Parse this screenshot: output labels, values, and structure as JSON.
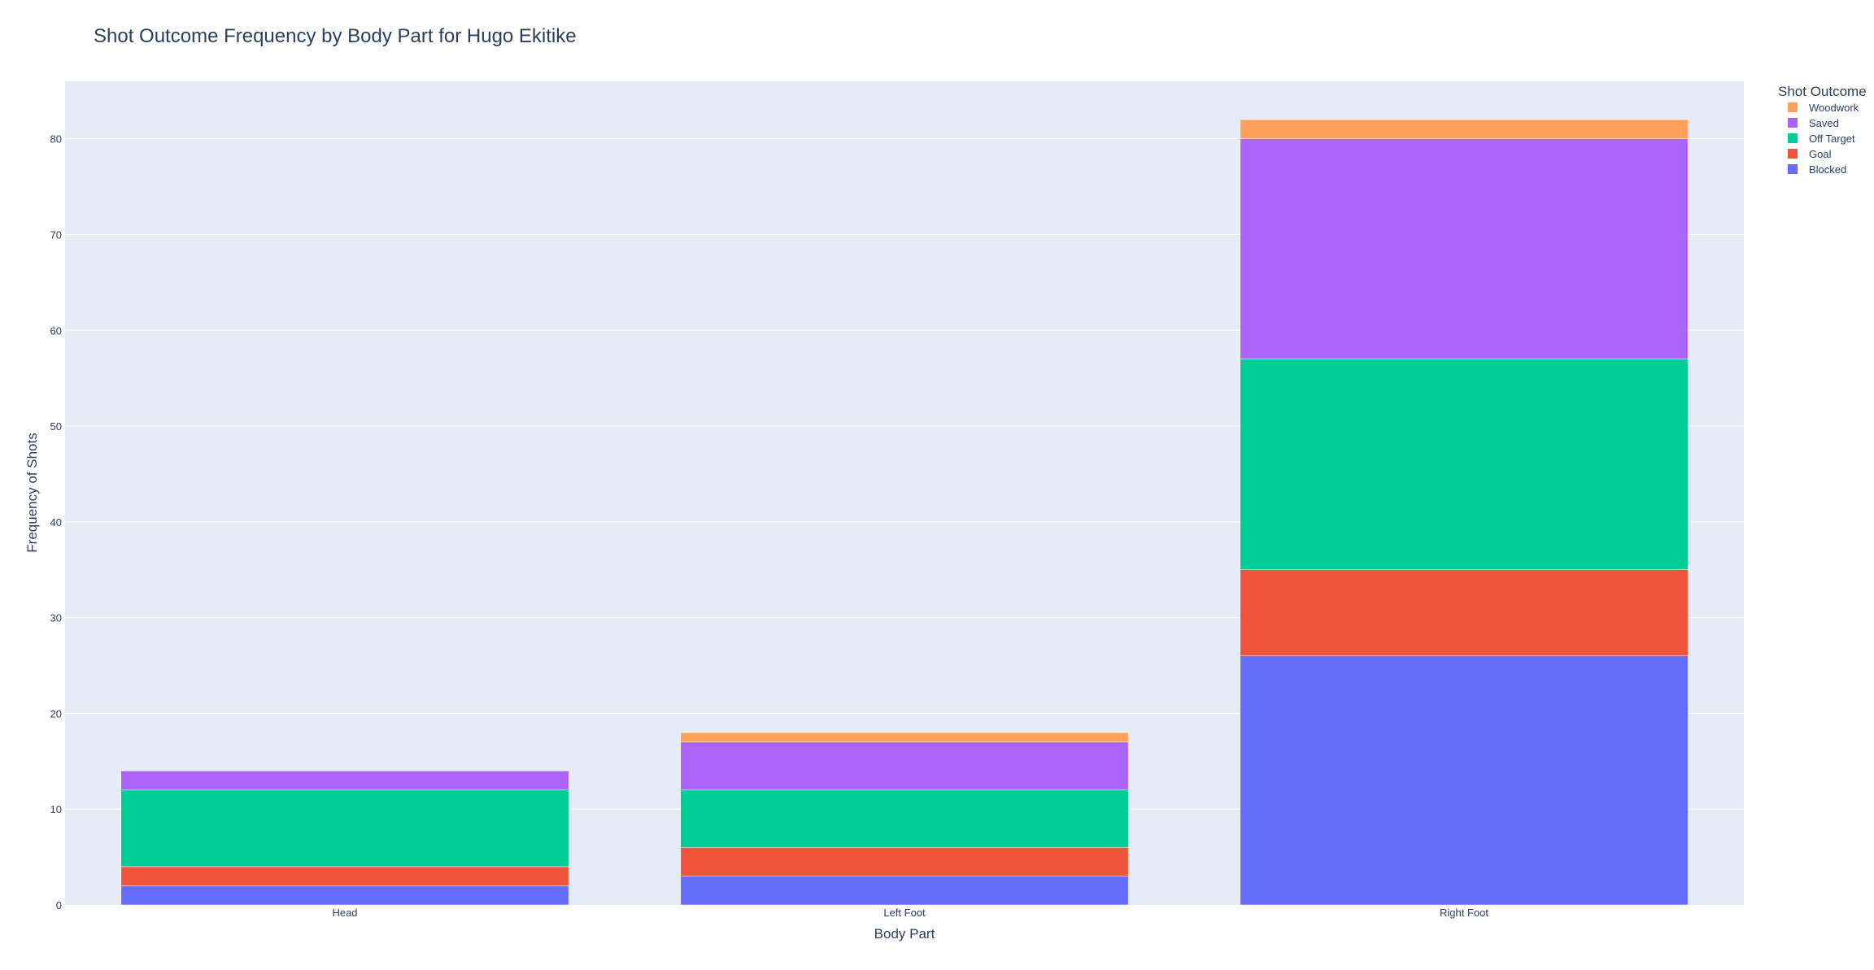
{
  "chart_data": {
    "type": "bar",
    "barmode": "stack",
    "title": "Shot Outcome Frequency by Body Part for Hugo Ekitike",
    "xlabel": "Body Part",
    "ylabel": "Frequency of Shots",
    "categories": [
      "Head",
      "Left Foot",
      "Right Foot"
    ],
    "ylim": [
      0,
      86
    ],
    "yticks": [
      0,
      10,
      20,
      30,
      40,
      50,
      60,
      70,
      80
    ],
    "grid": true,
    "legend": {
      "title": "Shot Outcome",
      "placement": "top-right"
    },
    "series": [
      {
        "name": "Blocked",
        "color": "#636efa",
        "values": [
          2,
          3,
          26
        ]
      },
      {
        "name": "Goal",
        "color": "#ef553b",
        "values": [
          2,
          3,
          9
        ]
      },
      {
        "name": "Off Target",
        "color": "#00cc96",
        "values": [
          8,
          6,
          22
        ]
      },
      {
        "name": "Saved",
        "color": "#ab63fa",
        "values": [
          2,
          5,
          23
        ]
      },
      {
        "name": "Woodwork",
        "color": "#ffa15a",
        "values": [
          0,
          1,
          2
        ]
      }
    ]
  }
}
